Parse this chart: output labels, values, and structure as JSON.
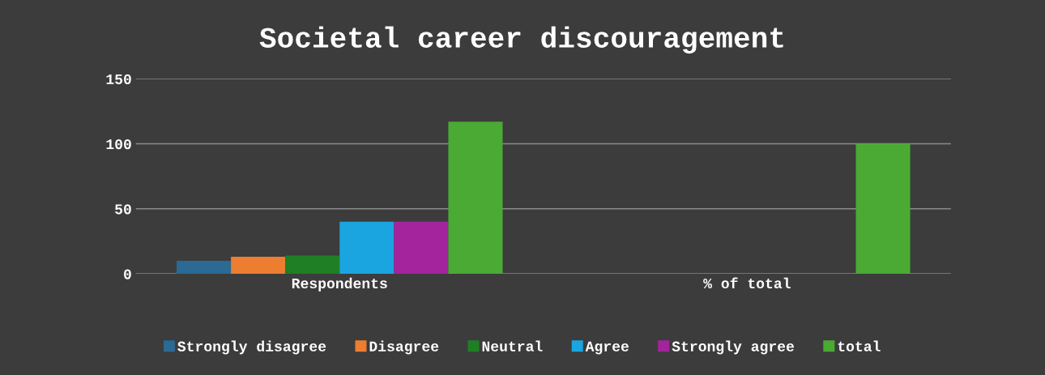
{
  "chart_data": {
    "type": "bar",
    "title": "Societal career discouragement",
    "categories": [
      "Respondents",
      "% of total"
    ],
    "series": [
      {
        "name": "Strongly disagree",
        "color": "#2a6a94",
        "values": [
          10,
          0
        ]
      },
      {
        "name": "Disagree",
        "color": "#ed7d31",
        "values": [
          13,
          0
        ]
      },
      {
        "name": "Neutral",
        "color": "#1f7f24",
        "values": [
          14,
          0
        ]
      },
      {
        "name": "Agree",
        "color": "#1aa5e0",
        "values": [
          40,
          0
        ]
      },
      {
        "name": "Strongly agree",
        "color": "#a4249e",
        "values": [
          40,
          0
        ]
      },
      {
        "name": "total",
        "color": "#4aaa34",
        "values": [
          117,
          100
        ]
      }
    ],
    "ylim": [
      0,
      150
    ],
    "yticks": [
      0,
      50,
      100,
      150
    ],
    "grid": "y",
    "legend": "bottom"
  }
}
